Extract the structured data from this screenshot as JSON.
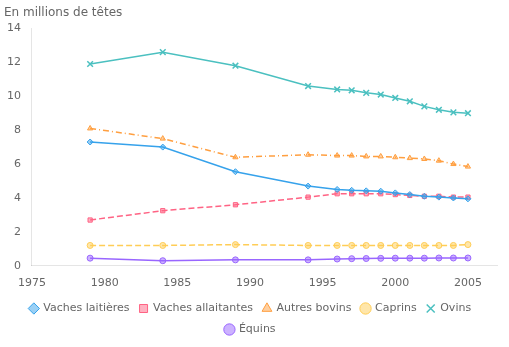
{
  "chart_data": {
    "type": "line",
    "title": "En millions de têtes",
    "x": [
      1979,
      1984,
      1989,
      1994,
      1996,
      1997,
      1998,
      1999,
      2000,
      2001,
      2002,
      2003,
      2004,
      2005
    ],
    "xlim": [
      1975,
      2007
    ],
    "xticks": [
      1975,
      1980,
      1985,
      1990,
      1995,
      2000,
      2005
    ],
    "ylim": [
      0,
      14
    ],
    "yticks": [
      0,
      2,
      4,
      6,
      8,
      10,
      12,
      14
    ],
    "grid": false,
    "legend": "bottom",
    "series": [
      {
        "name": "Vaches laitières",
        "marker": "diamond",
        "line_style": "solid",
        "values": [
          7.3,
          7.0,
          5.55,
          4.7,
          4.5,
          4.45,
          4.42,
          4.4,
          4.3,
          4.2,
          4.1,
          4.05,
          4.0,
          3.95
        ]
      },
      {
        "name": "Vaches allaitantes",
        "marker": "square",
        "line_style": "dashed",
        "values": [
          2.7,
          3.25,
          3.6,
          4.05,
          4.25,
          4.25,
          4.25,
          4.25,
          4.2,
          4.15,
          4.1,
          4.1,
          4.05,
          4.05
        ]
      },
      {
        "name": "Autres bovins",
        "marker": "triangle",
        "line_style": "dashdot",
        "values": [
          8.1,
          7.5,
          6.4,
          6.55,
          6.5,
          6.5,
          6.45,
          6.45,
          6.4,
          6.35,
          6.3,
          6.2,
          6.0,
          5.85
        ]
      },
      {
        "name": "Caprins",
        "marker": "circle",
        "line_style": "dashed",
        "values": [
          1.2,
          1.2,
          1.25,
          1.2,
          1.2,
          1.2,
          1.2,
          1.2,
          1.2,
          1.2,
          1.2,
          1.2,
          1.2,
          1.25
        ]
      },
      {
        "name": "Ovins",
        "marker": "cross",
        "line_style": "solid",
        "values": [
          11.9,
          12.6,
          11.8,
          10.6,
          10.4,
          10.35,
          10.2,
          10.1,
          9.9,
          9.7,
          9.4,
          9.2,
          9.05,
          9.0
        ]
      },
      {
        "name": "Équins",
        "marker": "circle",
        "line_style": "solid",
        "values": [
          0.45,
          0.3,
          0.35,
          0.35,
          0.4,
          0.42,
          0.43,
          0.44,
          0.45,
          0.45,
          0.45,
          0.46,
          0.46,
          0.46
        ]
      }
    ]
  }
}
